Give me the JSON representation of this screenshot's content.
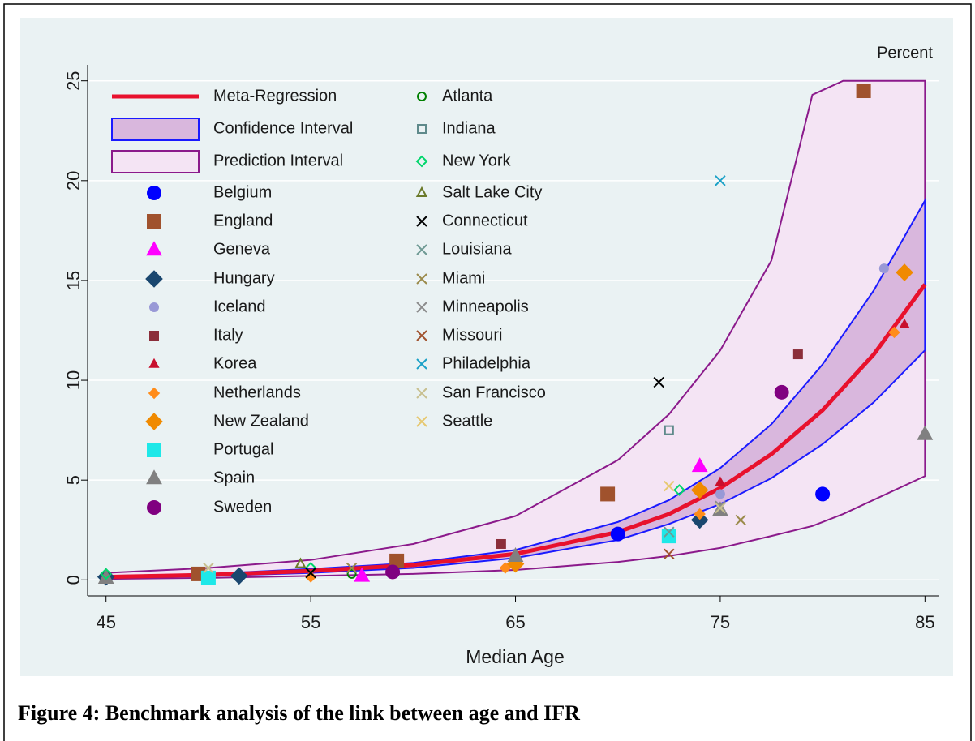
{
  "chart_data": {
    "type": "scatter",
    "caption": "Figure 4: Benchmark analysis of the link between age and IFR",
    "x_label": "Median Age",
    "y_label": "Percent",
    "xlim": [
      44.1,
      85.7
    ],
    "ylim": [
      -0.8,
      25.8
    ],
    "xticks": [
      45,
      55,
      65,
      75,
      85
    ],
    "yticks": [
      0,
      5,
      10,
      15,
      20,
      25
    ],
    "grid": true,
    "series": [
      {
        "name": "Meta-Regression",
        "kind": "line",
        "color": "#e8112d",
        "x": [
          45,
          50,
          55,
          60,
          65,
          70,
          72.5,
          75,
          77.5,
          80,
          82.5,
          85
        ],
        "values": [
          0.15,
          0.25,
          0.45,
          0.75,
          1.3,
          2.4,
          3.3,
          4.6,
          6.3,
          8.5,
          11.3,
          14.8
        ]
      },
      {
        "name": "Confidence Interval",
        "kind": "band",
        "color": "#d9b7dd",
        "stroke": "#1a1aff",
        "x": [
          45,
          50,
          55,
          60,
          65,
          70,
          72.5,
          75,
          77.5,
          80,
          82.5,
          85
        ],
        "upper": [
          0.2,
          0.3,
          0.55,
          0.85,
          1.5,
          2.9,
          4.0,
          5.6,
          7.8,
          10.8,
          14.5,
          19
        ],
        "lower": [
          0.1,
          0.2,
          0.35,
          0.6,
          1.1,
          2.0,
          2.8,
          3.8,
          5.1,
          6.8,
          8.9,
          11.5
        ]
      },
      {
        "name": "Prediction Interval",
        "kind": "band",
        "color": "#f4e4f4",
        "stroke": "#8b1a8b",
        "x": [
          45,
          50,
          55,
          60,
          65,
          70,
          72.5,
          75,
          77.5,
          79.5,
          81,
          85
        ],
        "upper": [
          0.35,
          0.6,
          1.0,
          1.8,
          3.2,
          6.0,
          8.3,
          11.5,
          16,
          24.3,
          25,
          25
        ],
        "lower": [
          0.05,
          0.1,
          0.2,
          0.3,
          0.5,
          0.9,
          1.2,
          1.6,
          2.2,
          2.7,
          3.3,
          5.2
        ]
      },
      {
        "name": "Belgium",
        "marker": "circle",
        "color": "#0000ff",
        "x": [
          70,
          80
        ],
        "values": [
          2.3,
          4.3
        ]
      },
      {
        "name": "England",
        "marker": "square",
        "color": "#a0522d",
        "x": [
          49.5,
          59.2,
          69.5,
          82
        ],
        "values": [
          0.3,
          0.95,
          4.3,
          24.5
        ]
      },
      {
        "name": "Geneva",
        "marker": "triangle",
        "color": "#ff00ff",
        "x": [
          57.5,
          74
        ],
        "values": [
          0.2,
          5.7
        ]
      },
      {
        "name": "Hungary",
        "marker": "diamond",
        "color": "#1a476f",
        "x": [
          45,
          51.5,
          74
        ],
        "values": [
          0.15,
          0.2,
          3.0
        ]
      },
      {
        "name": "Iceland",
        "marker": "circle-small",
        "color": "#9999d6",
        "x": [
          75,
          83
        ],
        "values": [
          4.3,
          15.6
        ]
      },
      {
        "name": "Italy",
        "marker": "square-small",
        "color": "#8b2e3a",
        "x": [
          64.3,
          78.8
        ],
        "values": [
          1.8,
          11.3
        ]
      },
      {
        "name": "Korea",
        "marker": "triangle-small",
        "color": "#c8102e",
        "x": [
          75,
          84
        ],
        "values": [
          4.9,
          12.8
        ]
      },
      {
        "name": "Netherlands",
        "marker": "diamond-small",
        "color": "#ff8c1a",
        "x": [
          55,
          64.5,
          74,
          83.5
        ],
        "values": [
          0.15,
          0.6,
          3.3,
          12.4
        ]
      },
      {
        "name": "New Zealand",
        "marker": "diamond",
        "color": "#f08a00",
        "x": [
          65,
          74,
          84
        ],
        "values": [
          0.8,
          4.5,
          15.4
        ]
      },
      {
        "name": "Portugal",
        "marker": "square",
        "color": "#1ee8e8",
        "x": [
          50,
          72.5
        ],
        "values": [
          0.1,
          2.2
        ]
      },
      {
        "name": "Spain",
        "marker": "triangle",
        "color": "#808080",
        "x": [
          45,
          65,
          75,
          85
        ],
        "values": [
          0.1,
          1.2,
          3.5,
          7.3
        ]
      },
      {
        "name": "Sweden",
        "marker": "circle",
        "color": "#800080",
        "x": [
          59,
          78
        ],
        "values": [
          0.4,
          9.4
        ]
      },
      {
        "name": "Atlanta",
        "marker": "hollow-circle",
        "color": "#008000",
        "x": [
          57
        ],
        "values": [
          0.3
        ]
      },
      {
        "name": "Indiana",
        "marker": "hollow-square",
        "color": "#5f8a8b",
        "x": [
          72.5
        ],
        "values": [
          7.5
        ]
      },
      {
        "name": "New York",
        "marker": "hollow-diamond",
        "color": "#00d66b",
        "x": [
          45,
          55,
          73
        ],
        "values": [
          0.3,
          0.6,
          4.5
        ]
      },
      {
        "name": "Salt Lake City",
        "marker": "hollow-triangle",
        "color": "#6b7a2a",
        "x": [
          54.5
        ],
        "values": [
          0.8
        ]
      },
      {
        "name": "Connecticut",
        "marker": "x",
        "color": "#000000",
        "x": [
          55,
          72
        ],
        "values": [
          0.35,
          9.9
        ]
      },
      {
        "name": "Louisiana",
        "marker": "x",
        "color": "#6f9a94",
        "x": [
          72.5
        ],
        "values": [
          2.4
        ]
      },
      {
        "name": "Miami",
        "marker": "x",
        "color": "#9a8a4a",
        "x": [
          57,
          76
        ],
        "values": [
          0.6,
          3.0
        ]
      },
      {
        "name": "Minneapolis",
        "marker": "x",
        "color": "#8c8c8c",
        "x": [
          75
        ],
        "values": [
          3.7
        ]
      },
      {
        "name": "Missouri",
        "marker": "x",
        "color": "#a0522d",
        "x": [
          72.5
        ],
        "values": [
          1.3
        ]
      },
      {
        "name": "Philadelphia",
        "marker": "x",
        "color": "#1ba1c7",
        "x": [
          75
        ],
        "values": [
          20
        ]
      },
      {
        "name": "San Francisco",
        "marker": "x",
        "color": "#c8c090",
        "x": [
          50,
          75
        ],
        "values": [
          0.6,
          3.6
        ]
      },
      {
        "name": "Seattle",
        "marker": "x",
        "color": "#e6c870",
        "x": [
          72.5
        ],
        "values": [
          4.7
        ]
      }
    ]
  }
}
